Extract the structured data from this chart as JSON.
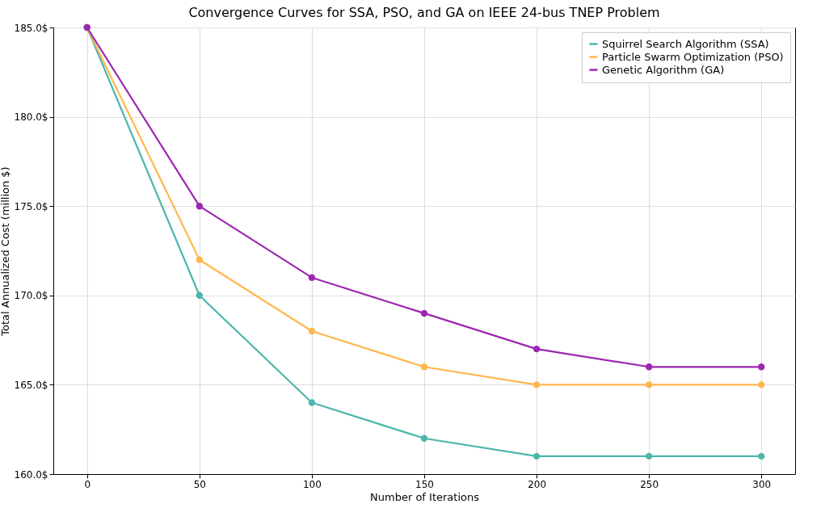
{
  "chart_data": {
    "type": "line",
    "title": "Convergence Curves for SSA, PSO, and GA on IEEE 24-bus TNEP Problem",
    "xlabel": "Number of Iterations",
    "ylabel": "Total Annualized Cost (million $)",
    "x": [
      0,
      50,
      100,
      150,
      200,
      250,
      300
    ],
    "series": [
      {
        "name": "Squirrel Search Algorithm (SSA)",
        "color": "#4db6ac",
        "values": [
          185,
          170,
          164,
          162,
          161,
          161,
          161
        ]
      },
      {
        "name": "Particle Swarm Optimization (PSO)",
        "color": "#ffb74d",
        "values": [
          185,
          172,
          168,
          166,
          165,
          165,
          165
        ]
      },
      {
        "name": "Genetic Algorithm (GA)",
        "color": "#9c27b0",
        "values": [
          185,
          175,
          171,
          169,
          167,
          166,
          166
        ]
      }
    ],
    "xlim": [
      -15,
      315
    ],
    "xticks": [
      0,
      50,
      100,
      150,
      200,
      250,
      300
    ],
    "ylim": [
      160,
      185
    ],
    "yticks": [
      {
        "value": 160,
        "label": "160.0$"
      },
      {
        "value": 165,
        "label": "165.0$"
      },
      {
        "value": 170,
        "label": "170.0$"
      },
      {
        "value": 175,
        "label": "175.0$"
      },
      {
        "value": 180,
        "label": "180.0$"
      },
      {
        "value": 185,
        "label": "185.0$"
      }
    ],
    "grid": true,
    "legend": "top right",
    "marker": "circle",
    "line_style": "solid"
  }
}
